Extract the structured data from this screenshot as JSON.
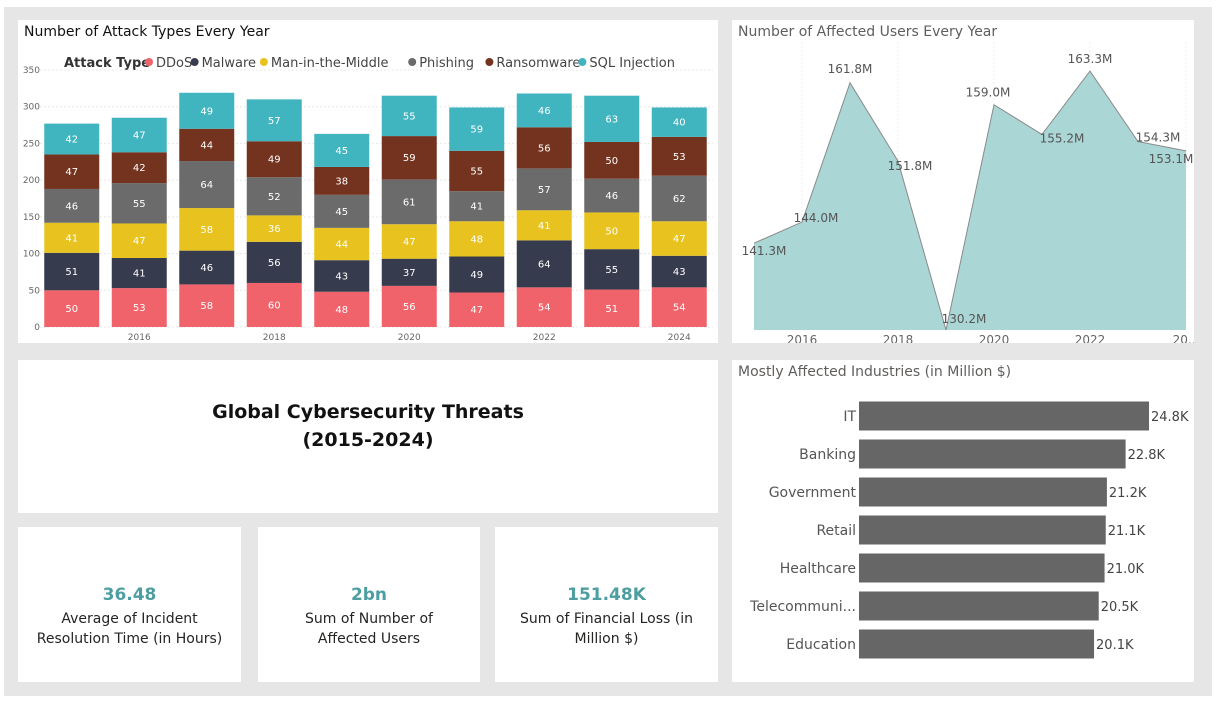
{
  "report": {
    "title_line1": "Global Cybersecurity Threats",
    "title_line2": "(2015-2024)"
  },
  "kpis": [
    {
      "value": "36.48",
      "label": "Average of Incident Resolution Time (in Hours)"
    },
    {
      "value": "2bn",
      "label": "Sum of Number of Affected Users"
    },
    {
      "value": "151.48K",
      "label": "Sum of Financial Loss (in Million $)"
    }
  ],
  "colors": {
    "DDoS": "#f0636a",
    "Malware": "#373b4e",
    "Man-in-the-Middle": "#e8c31f",
    "Phishing": "#6b6b6b",
    "Ransomware": "#74331f",
    "SQL Injection": "#41b5bf",
    "area_fill": "#aad6d6",
    "area_line": "#8a8a8a",
    "industry_bar": "#666666",
    "kpi_value": "#4d9ea1"
  },
  "chart_data": [
    {
      "id": "attack-types",
      "type": "bar",
      "stacked": true,
      "title": "Number of Attack Types Every Year",
      "legend_title": "Attack Type",
      "legend_position": "top-left",
      "categories": [
        2015,
        2016,
        2017,
        2018,
        2019,
        2020,
        2021,
        2022,
        2023,
        2024
      ],
      "x_tick_labels": [
        "2016",
        "2018",
        "2020",
        "2022",
        "2024"
      ],
      "y_ticks": [
        0,
        50,
        100,
        150,
        200,
        250,
        300,
        350
      ],
      "ylim": [
        0,
        350
      ],
      "grid": true,
      "series": [
        {
          "name": "DDoS",
          "values": [
            50,
            53,
            58,
            60,
            48,
            56,
            47,
            54,
            51,
            54
          ]
        },
        {
          "name": "Malware",
          "values": [
            51,
            41,
            46,
            56,
            43,
            37,
            49,
            64,
            55,
            43
          ]
        },
        {
          "name": "Man-in-the-Middle",
          "values": [
            41,
            47,
            58,
            36,
            44,
            47,
            48,
            41,
            50,
            47
          ]
        },
        {
          "name": "Phishing",
          "values": [
            46,
            55,
            64,
            52,
            45,
            61,
            41,
            57,
            46,
            62
          ]
        },
        {
          "name": "Ransomware",
          "values": [
            47,
            42,
            44,
            49,
            38,
            59,
            55,
            56,
            50,
            53
          ]
        },
        {
          "name": "SQL Injection",
          "values": [
            42,
            47,
            49,
            57,
            45,
            55,
            59,
            46,
            63,
            40
          ]
        }
      ]
    },
    {
      "id": "affected-users",
      "type": "area",
      "title": "Number of Affected Users Every Year",
      "x": [
        2015,
        2016,
        2017,
        2018,
        2019,
        2020,
        2021,
        2022,
        2023,
        2024
      ],
      "x_tick_labels": [
        "2016",
        "2018",
        "2020",
        "2022",
        "20..."
      ],
      "values_millions": [
        141.3,
        144.0,
        161.8,
        151.8,
        130.2,
        159.0,
        155.2,
        163.3,
        154.3,
        153.1
      ],
      "data_labels": [
        "141.3M",
        "144.0M",
        "161.8M",
        "151.8M",
        "130.2M",
        "159.0M",
        "155.2M",
        "163.3M",
        "154.3M",
        "153.1M"
      ],
      "ylim": [
        130.2,
        166
      ],
      "grid": true
    },
    {
      "id": "industries",
      "type": "bar",
      "orientation": "horizontal",
      "title": "Mostly Affected Industries (in Million $)",
      "categories": [
        "IT",
        "Banking",
        "Government",
        "Retail",
        "Healthcare",
        "Telecommuni...",
        "Education"
      ],
      "values": [
        24.8,
        22.8,
        21.2,
        21.1,
        21.0,
        20.5,
        20.1
      ],
      "data_labels": [
        "24.8K",
        "22.8K",
        "21.2K",
        "21.1K",
        "21.0K",
        "20.5K",
        "20.1K"
      ],
      "xlim": [
        0,
        24.8
      ]
    }
  ]
}
